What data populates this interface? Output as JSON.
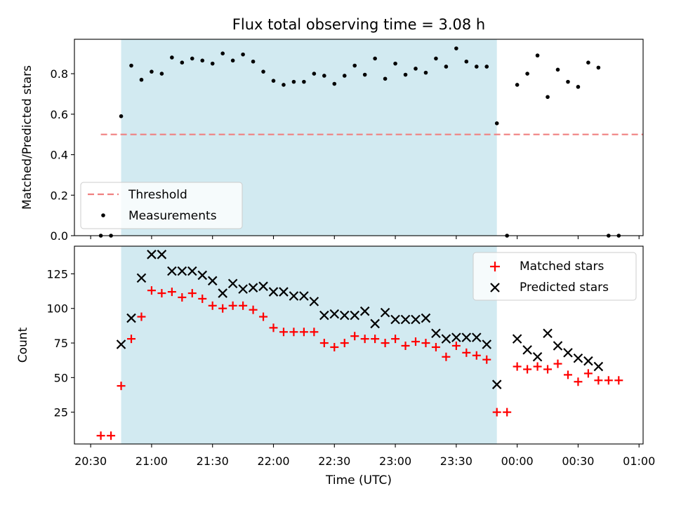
{
  "title": "Flux total observing time = 3.08 h",
  "xlabel": "Time (UTC)",
  "x_ticks": [
    "20:30",
    "21:00",
    "21:30",
    "22:00",
    "22:30",
    "23:00",
    "23:30",
    "00:00",
    "00:30",
    "01:00"
  ],
  "x_range": [
    "20:22",
    "01:02"
  ],
  "shaded_interval": [
    "20:45",
    "23:50"
  ],
  "colors": {
    "shade": "#add8e6",
    "threshold": "#f08080",
    "matched": "#ff0000",
    "predicted": "#000000",
    "measurements": "#000000"
  },
  "chart_data": [
    {
      "type": "scatter",
      "ylabel": "Matched/Predicted stars",
      "ylim": [
        0,
        0.97
      ],
      "y_ticks": [
        "0.0",
        "0.2",
        "0.4",
        "0.6",
        "0.8"
      ],
      "legend_position": "lower-left",
      "threshold": {
        "name": "Threshold",
        "value": 0.5,
        "x_range": [
          "20:35",
          "01:50"
        ]
      },
      "series": [
        {
          "name": "Measurements",
          "marker": "dot",
          "x": [
            "20:35",
            "20:40",
            "20:45",
            "20:50",
            "20:55",
            "21:00",
            "21:05",
            "21:10",
            "21:15",
            "21:20",
            "21:25",
            "21:30",
            "21:35",
            "21:40",
            "21:45",
            "21:50",
            "21:55",
            "22:00",
            "22:05",
            "22:10",
            "22:15",
            "22:20",
            "22:25",
            "22:30",
            "22:35",
            "22:40",
            "22:45",
            "22:50",
            "22:55",
            "23:00",
            "23:05",
            "23:10",
            "23:15",
            "23:20",
            "23:25",
            "23:30",
            "23:35",
            "23:40",
            "23:45",
            "23:50",
            "23:55",
            "00:00",
            "00:05",
            "00:10",
            "00:15",
            "00:20",
            "00:25",
            "00:30",
            "00:35",
            "00:40",
            "00:45",
            "00:50"
          ],
          "y": [
            0.0,
            0.0,
            0.59,
            0.84,
            0.77,
            0.81,
            0.8,
            0.88,
            0.855,
            0.875,
            0.865,
            0.85,
            0.9,
            0.865,
            0.895,
            0.86,
            0.81,
            0.765,
            0.745,
            0.76,
            0.76,
            0.8,
            0.79,
            0.75,
            0.79,
            0.84,
            0.795,
            0.875,
            0.775,
            0.85,
            0.795,
            0.825,
            0.805,
            0.875,
            0.835,
            0.925,
            0.86,
            0.835,
            0.835,
            0.555,
            0.0,
            0.745,
            0.8,
            0.89,
            0.685,
            0.82,
            0.76,
            0.735,
            0.855,
            0.83,
            0.0,
            0.0
          ]
        }
      ]
    },
    {
      "type": "scatter",
      "ylabel": "Count",
      "ylim": [
        2,
        145
      ],
      "y_ticks": [
        "25",
        "50",
        "75",
        "100",
        "125"
      ],
      "legend_position": "upper-right",
      "series": [
        {
          "name": "Matched stars",
          "marker": "plus",
          "x": [
            "20:35",
            "20:40",
            "20:45",
            "20:50",
            "20:55",
            "21:00",
            "21:05",
            "21:10",
            "21:15",
            "21:20",
            "21:25",
            "21:30",
            "21:35",
            "21:40",
            "21:45",
            "21:50",
            "21:55",
            "22:00",
            "22:05",
            "22:10",
            "22:15",
            "22:20",
            "22:25",
            "22:30",
            "22:35",
            "22:40",
            "22:45",
            "22:50",
            "22:55",
            "23:00",
            "23:05",
            "23:10",
            "23:15",
            "23:20",
            "23:25",
            "23:30",
            "23:35",
            "23:40",
            "23:45",
            "23:50",
            "23:55",
            "00:00",
            "00:05",
            "00:10",
            "00:15",
            "00:20",
            "00:25",
            "00:30",
            "00:35",
            "00:40",
            "00:45",
            "00:50"
          ],
          "y": [
            8,
            8,
            44,
            78,
            94,
            113,
            111,
            112,
            108,
            111,
            107,
            102,
            100,
            102,
            102,
            99,
            94,
            86,
            83,
            83,
            83,
            83,
            75,
            72,
            75,
            80,
            78,
            78,
            75,
            78,
            73,
            76,
            75,
            72,
            65,
            73,
            68,
            66,
            63,
            25,
            25,
            58,
            56,
            58,
            56,
            60,
            52,
            47,
            53,
            48,
            48,
            48
          ]
        },
        {
          "name": "Predicted stars",
          "marker": "x",
          "x": [
            "20:45",
            "20:50",
            "20:55",
            "21:00",
            "21:05",
            "21:10",
            "21:15",
            "21:20",
            "21:25",
            "21:30",
            "21:35",
            "21:40",
            "21:45",
            "21:50",
            "21:55",
            "22:00",
            "22:05",
            "22:10",
            "22:15",
            "22:20",
            "22:25",
            "22:30",
            "22:35",
            "22:40",
            "22:45",
            "22:50",
            "22:55",
            "23:00",
            "23:05",
            "23:10",
            "23:15",
            "23:20",
            "23:25",
            "23:30",
            "23:35",
            "23:40",
            "23:45",
            "23:50",
            "00:00",
            "00:05",
            "00:10",
            "00:15",
            "00:20",
            "00:25",
            "00:30",
            "00:35",
            "00:40"
          ],
          "y": [
            74,
            93,
            122,
            139,
            139,
            127,
            127,
            127,
            124,
            120,
            111,
            118,
            114,
            115,
            116,
            112,
            112,
            109,
            109,
            105,
            95,
            96,
            95,
            95,
            98,
            89,
            97,
            92,
            92,
            92,
            93,
            82,
            78,
            79,
            79,
            79,
            74,
            45,
            78,
            70,
            65,
            82,
            73,
            68,
            64,
            62,
            58
          ]
        }
      ]
    }
  ]
}
